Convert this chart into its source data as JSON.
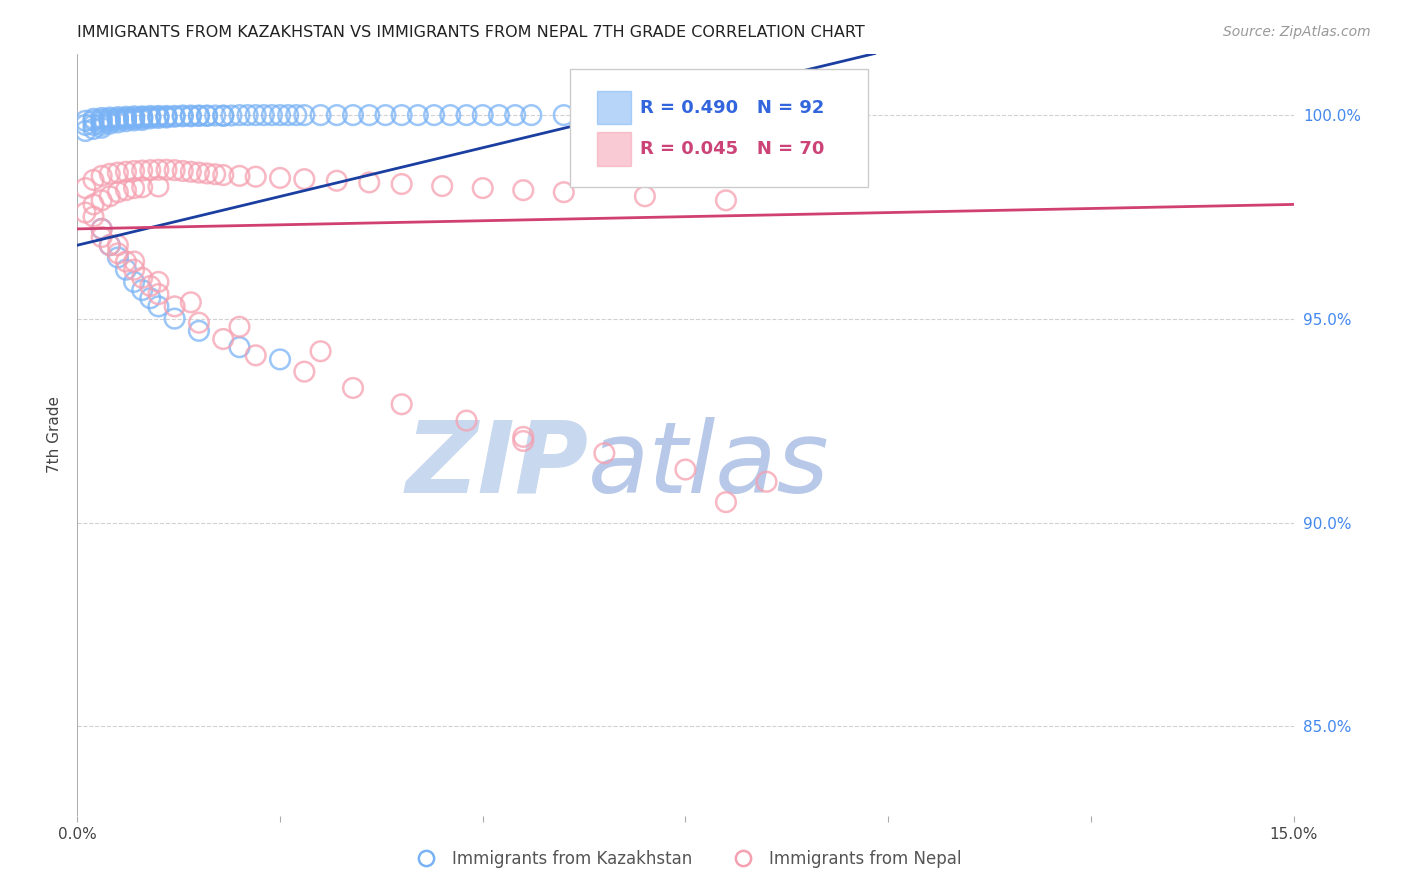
{
  "title": "IMMIGRANTS FROM KAZAKHSTAN VS IMMIGRANTS FROM NEPAL 7TH GRADE CORRELATION CHART",
  "source": "Source: ZipAtlas.com",
  "ylabel": "7th Grade",
  "yticks": [
    "100.0%",
    "95.0%",
    "90.0%",
    "85.0%"
  ],
  "ytick_vals": [
    1.0,
    0.95,
    0.9,
    0.85
  ],
  "xlim": [
    0.0,
    0.15
  ],
  "ylim": [
    0.828,
    1.015
  ],
  "legend_blue_R": "0.490",
  "legend_blue_N": "92",
  "legend_pink_R": "0.045",
  "legend_pink_N": "70",
  "blue_scatter_x": [
    0.001,
    0.001,
    0.001,
    0.002,
    0.002,
    0.002,
    0.002,
    0.003,
    0.003,
    0.003,
    0.003,
    0.003,
    0.004,
    0.004,
    0.004,
    0.004,
    0.005,
    0.005,
    0.005,
    0.005,
    0.006,
    0.006,
    0.006,
    0.006,
    0.007,
    0.007,
    0.007,
    0.007,
    0.008,
    0.008,
    0.008,
    0.008,
    0.009,
    0.009,
    0.009,
    0.01,
    0.01,
    0.01,
    0.011,
    0.011,
    0.011,
    0.012,
    0.012,
    0.013,
    0.013,
    0.014,
    0.014,
    0.015,
    0.015,
    0.016,
    0.016,
    0.017,
    0.018,
    0.018,
    0.019,
    0.02,
    0.021,
    0.022,
    0.023,
    0.024,
    0.025,
    0.026,
    0.027,
    0.028,
    0.03,
    0.032,
    0.034,
    0.036,
    0.038,
    0.04,
    0.042,
    0.044,
    0.046,
    0.048,
    0.05,
    0.052,
    0.054,
    0.056,
    0.06,
    0.064,
    0.003,
    0.004,
    0.005,
    0.006,
    0.007,
    0.008,
    0.009,
    0.01,
    0.012,
    0.015,
    0.02,
    0.025
  ],
  "blue_scatter_y": [
    0.9985,
    0.9975,
    0.996,
    0.999,
    0.9985,
    0.9975,
    0.9965,
    0.9992,
    0.9988,
    0.9982,
    0.9975,
    0.9968,
    0.9993,
    0.9989,
    0.9984,
    0.9978,
    0.9994,
    0.9991,
    0.9987,
    0.9981,
    0.9995,
    0.9992,
    0.9989,
    0.9984,
    0.9996,
    0.9993,
    0.999,
    0.9986,
    0.9996,
    0.9994,
    0.9991,
    0.9987,
    0.9997,
    0.9994,
    0.9991,
    0.9997,
    0.9995,
    0.9992,
    0.9997,
    0.9995,
    0.9993,
    0.9997,
    0.9995,
    0.9998,
    0.9996,
    0.9998,
    0.9996,
    0.9998,
    0.9997,
    0.9998,
    0.9997,
    0.9998,
    0.9998,
    0.9997,
    0.9998,
    0.9999,
    0.9999,
    0.9999,
    0.9999,
    0.9999,
    0.9999,
    0.9999,
    0.9999,
    0.9999,
    0.9999,
    0.9999,
    0.9999,
    0.9999,
    0.9999,
    0.9999,
    0.9999,
    0.9999,
    0.9999,
    0.9999,
    0.9999,
    0.9999,
    0.9999,
    0.9999,
    0.9999,
    0.9999,
    0.972,
    0.968,
    0.965,
    0.962,
    0.959,
    0.957,
    0.955,
    0.953,
    0.95,
    0.947,
    0.943,
    0.94
  ],
  "pink_scatter_x": [
    0.001,
    0.001,
    0.002,
    0.002,
    0.003,
    0.003,
    0.004,
    0.004,
    0.005,
    0.005,
    0.006,
    0.006,
    0.007,
    0.007,
    0.008,
    0.008,
    0.009,
    0.01,
    0.01,
    0.011,
    0.012,
    0.013,
    0.014,
    0.015,
    0.016,
    0.017,
    0.018,
    0.02,
    0.022,
    0.025,
    0.028,
    0.032,
    0.036,
    0.04,
    0.045,
    0.05,
    0.055,
    0.06,
    0.07,
    0.08,
    0.003,
    0.004,
    0.005,
    0.006,
    0.007,
    0.008,
    0.009,
    0.01,
    0.012,
    0.015,
    0.018,
    0.022,
    0.028,
    0.034,
    0.04,
    0.048,
    0.055,
    0.065,
    0.075,
    0.085,
    0.002,
    0.003,
    0.005,
    0.007,
    0.01,
    0.014,
    0.02,
    0.03,
    0.055,
    0.08
  ],
  "pink_scatter_y": [
    0.982,
    0.976,
    0.984,
    0.978,
    0.985,
    0.979,
    0.9855,
    0.98,
    0.9858,
    0.981,
    0.986,
    0.9815,
    0.9862,
    0.982,
    0.9863,
    0.9822,
    0.9864,
    0.9865,
    0.9824,
    0.9865,
    0.9864,
    0.9862,
    0.986,
    0.9858,
    0.9856,
    0.9854,
    0.9852,
    0.985,
    0.9848,
    0.9845,
    0.9842,
    0.9838,
    0.9834,
    0.983,
    0.9825,
    0.982,
    0.9815,
    0.981,
    0.98,
    0.979,
    0.97,
    0.968,
    0.966,
    0.964,
    0.962,
    0.96,
    0.958,
    0.956,
    0.953,
    0.949,
    0.945,
    0.941,
    0.937,
    0.933,
    0.929,
    0.925,
    0.921,
    0.917,
    0.913,
    0.91,
    0.975,
    0.972,
    0.968,
    0.964,
    0.959,
    0.954,
    0.948,
    0.942,
    0.92,
    0.905
  ],
  "blue_line_x": [
    0.0,
    0.068
  ],
  "blue_line_y": [
    0.968,
    1.0005
  ],
  "pink_line_x": [
    0.0,
    0.15
  ],
  "pink_line_y": [
    0.972,
    0.978
  ],
  "scatter_color_blue": "#7ab3f5",
  "scatter_color_pink": "#f5a0b0",
  "line_color_blue": "#1a3fa0",
  "line_color_pink": "#d04070",
  "watermark_zip_color": "#c8d8ee",
  "watermark_atlas_color": "#b8c8e8",
  "grid_color": "#cccccc",
  "background_color": "#ffffff"
}
